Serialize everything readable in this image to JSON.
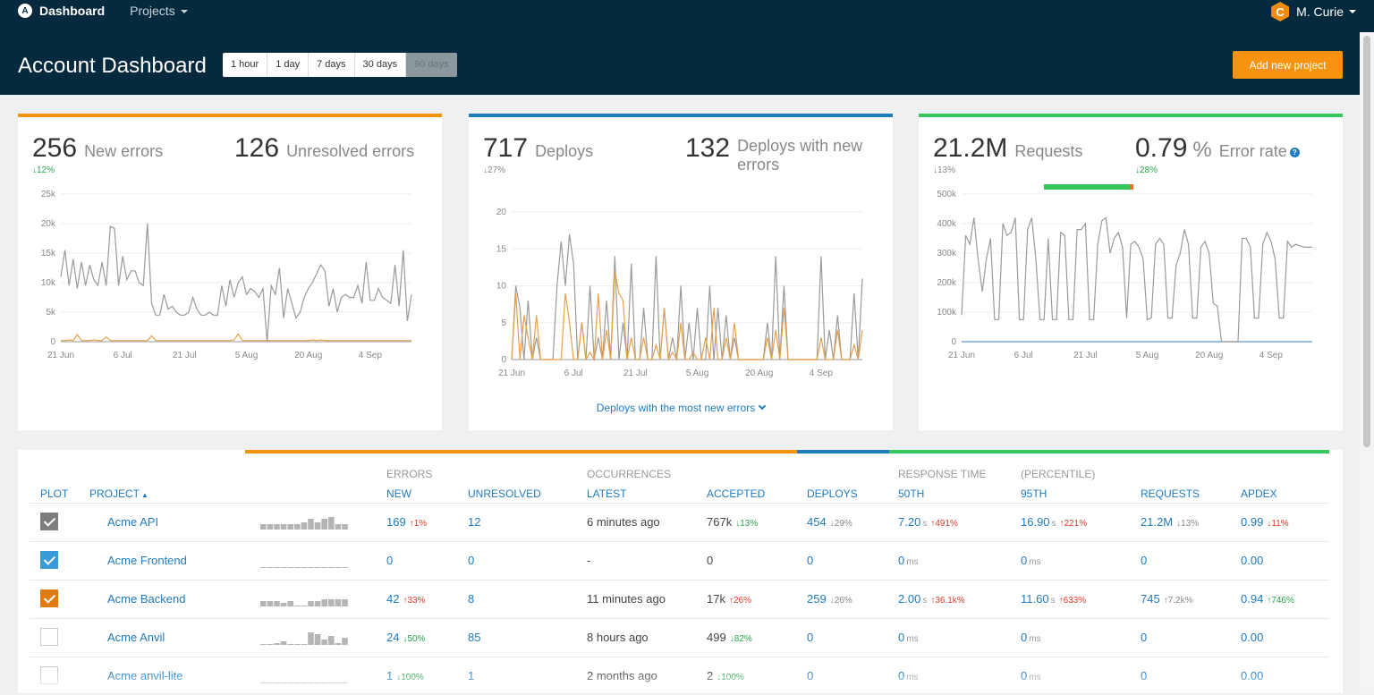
{
  "nav": {
    "logo_letter": "A",
    "brand": "Dashboard",
    "projects": "Projects",
    "user_initial": "C",
    "user_name": "M. Curie"
  },
  "header": {
    "title": "Account Dashboard",
    "ranges": [
      "1 hour",
      "1 day",
      "7 days",
      "30 days",
      "90 days"
    ],
    "active_range": "90 days",
    "add_button": "Add new project"
  },
  "colors": {
    "orange": "#f7930e",
    "blue": "#1f7bbf",
    "green": "#34c759",
    "navy": "#062a3d",
    "grey_series": "#9a9a9a",
    "orange_series": "#e8a04a"
  },
  "cards": [
    {
      "m1": {
        "value": "256",
        "label": "New errors",
        "change": "12%",
        "dir": "down",
        "tone": "green"
      },
      "m2": {
        "value": "126",
        "label": "Unresolved errors"
      }
    },
    {
      "m1": {
        "value": "717",
        "label": "Deploys",
        "change": "27%",
        "dir": "down",
        "tone": "grey"
      },
      "m2": {
        "value": "132",
        "label": "Deploys with new errors"
      },
      "link": "Deploys with the most new errors"
    },
    {
      "m1": {
        "value": "21.2M",
        "label": "Requests",
        "change": "13%",
        "dir": "down",
        "tone": "grey"
      },
      "m2": {
        "value": "0.79",
        "unit": "%",
        "label": "Error rate",
        "change": "28%",
        "dir": "down",
        "tone": "green",
        "help": "?"
      },
      "success_fraction": 0.96
    }
  ],
  "chart_data": [
    {
      "type": "line",
      "x_labels": [
        "21 Jun",
        "6 Jul",
        "21 Jul",
        "5 Aug",
        "20 Aug",
        "4 Sep"
      ],
      "y_labels": [
        "0",
        "5k",
        "10k",
        "15k",
        "20k",
        "25k"
      ],
      "ylim": [
        0,
        25000
      ],
      "series": [
        {
          "values": [
            11000,
            15500,
            9500,
            14000,
            9000,
            13500,
            9500,
            13000,
            10500,
            9500,
            13500,
            9500,
            19500,
            19200,
            9500,
            14500,
            10500,
            12000,
            12000,
            10000,
            9500,
            20000,
            6500,
            4500,
            4500,
            8000,
            5500,
            6000,
            5000,
            4500,
            4500,
            5000,
            7500,
            5500,
            4500,
            4500,
            5000,
            4500,
            4500,
            9500,
            6000,
            10500,
            7500,
            10000,
            11000,
            8000,
            9000,
            8500,
            7500,
            9000,
            0,
            9500,
            8000,
            12500,
            4000,
            9000,
            6500,
            4000,
            5000,
            7500,
            9000,
            10000,
            11500,
            13000,
            12000,
            6000,
            9000,
            5000,
            7500,
            8000,
            7500,
            7500,
            9500,
            6500,
            13500,
            7000,
            7000,
            9000,
            7500,
            7000,
            6500,
            13000,
            6000,
            15500,
            3500,
            8000
          ]
        },
        {
          "values": [
            200,
            200,
            300,
            200,
            1200,
            200,
            200,
            200,
            300,
            200,
            200,
            800,
            200,
            200,
            200,
            200,
            200,
            200,
            200,
            200,
            200,
            200,
            1000,
            200,
            200,
            200,
            200,
            200,
            200,
            200,
            200,
            200,
            200,
            200,
            200,
            200,
            200,
            200,
            200,
            200,
            200,
            200,
            300,
            1300,
            200,
            200,
            200,
            200,
            200,
            200,
            200,
            200,
            200,
            200,
            200,
            200,
            200,
            200,
            200,
            200,
            200,
            300,
            200,
            300,
            200,
            200,
            200,
            200,
            200,
            200,
            200,
            200,
            200,
            200,
            200,
            200,
            200,
            200,
            200,
            200,
            200,
            200,
            200,
            200,
            200,
            200
          ]
        }
      ]
    },
    {
      "type": "line",
      "x_labels": [
        "21 Jun",
        "6 Jul",
        "21 Jul",
        "5 Aug",
        "20 Aug",
        "4 Sep"
      ],
      "y_labels": [
        "0",
        "5",
        "10",
        "15",
        "20"
      ],
      "ylim": [
        0,
        20
      ],
      "series": [
        {
          "values": [
            0,
            10,
            7,
            0,
            8,
            0,
            3,
            0,
            0,
            0,
            0,
            10,
            16,
            10,
            17,
            13,
            0,
            5,
            0,
            10,
            0,
            3,
            0,
            8,
            0,
            14,
            0,
            5,
            0,
            13,
            0,
            0,
            7,
            0,
            0,
            14,
            0,
            7,
            0,
            3,
            0,
            10,
            0,
            5,
            0,
            7,
            0,
            0,
            10,
            0,
            7,
            0,
            6,
            0,
            3,
            0,
            0,
            0,
            0,
            0,
            0,
            0,
            5,
            0,
            14,
            0,
            10,
            0,
            0,
            0,
            0,
            0,
            0,
            0,
            0,
            14,
            0,
            4,
            0,
            6,
            0,
            0,
            0,
            9,
            0,
            11
          ]
        },
        {
          "values": [
            0,
            9,
            0,
            6,
            3,
            0,
            6,
            0,
            0,
            0,
            0,
            0,
            0,
            9,
            5,
            0,
            0,
            5,
            0,
            1,
            0,
            9,
            0,
            4,
            0,
            12,
            9,
            8,
            0,
            3,
            0,
            0,
            3,
            0,
            0,
            2,
            0,
            7,
            0,
            1,
            0,
            5,
            0,
            0,
            1,
            0,
            0,
            3,
            0,
            7,
            0,
            0,
            3,
            0,
            5,
            0,
            0,
            0,
            0,
            0,
            0,
            0,
            3,
            0,
            4,
            0,
            7,
            0,
            0,
            0,
            0,
            0,
            0,
            0,
            0,
            3,
            0,
            0,
            0,
            4,
            0,
            0,
            0,
            2,
            0,
            4
          ]
        }
      ]
    },
    {
      "type": "line",
      "x_labels": [
        "21 Jun",
        "6 Jul",
        "21 Jul",
        "5 Aug",
        "20 Aug",
        "4 Sep"
      ],
      "y_labels": [
        "0",
        "100k",
        "200k",
        "300k",
        "400k",
        "500k"
      ],
      "ylim": [
        0,
        500000
      ],
      "series": [
        {
          "values": [
            90000,
            360000,
            330000,
            420000,
            280000,
            170000,
            280000,
            350000,
            75000,
            75000,
            400000,
            360000,
            370000,
            420000,
            75000,
            75000,
            380000,
            420000,
            280000,
            75000,
            75000,
            350000,
            75000,
            75000,
            370000,
            360000,
            75000,
            75000,
            380000,
            380000,
            400000,
            75000,
            75000,
            330000,
            410000,
            420000,
            300000,
            350000,
            370000,
            320000,
            80000,
            330000,
            340000,
            320000,
            280000,
            75000,
            80000,
            330000,
            350000,
            330000,
            80000,
            80000,
            260000,
            300000,
            380000,
            330000,
            80000,
            80000,
            320000,
            340000,
            300000,
            130000,
            120000,
            0,
            0,
            0,
            0,
            0,
            350000,
            350000,
            320000,
            80000,
            80000,
            330000,
            370000,
            340000,
            280000,
            80000,
            80000,
            340000,
            320000,
            330000,
            325000,
            320000,
            320000,
            320000
          ]
        },
        {
          "values": [
            0,
            0,
            0,
            0,
            0,
            0,
            0,
            0,
            0,
            0,
            0,
            0,
            0,
            0,
            0,
            0,
            0,
            0,
            0,
            0,
            0,
            0,
            0,
            0,
            0,
            0,
            0,
            0,
            0,
            0,
            0,
            0,
            0,
            0,
            0,
            0,
            0,
            0,
            0,
            0,
            0,
            0,
            0,
            0,
            0,
            0,
            0,
            0,
            0,
            0,
            0,
            0,
            0,
            0,
            0,
            0,
            0,
            0,
            0,
            0,
            0,
            0,
            0,
            0,
            0,
            0,
            0,
            0,
            0,
            0,
            0,
            0,
            0,
            0,
            0,
            0,
            0,
            0,
            0,
            0,
            0,
            0,
            0,
            0,
            0,
            0
          ]
        }
      ]
    }
  ],
  "table": {
    "groups": {
      "errors": "ERRORS",
      "occurrences": "OCCURRENCES",
      "response": "RESPONSE TIME",
      "percentile": "(PERCENTILE)"
    },
    "columns": {
      "plot": "PLOT",
      "project": "PROJECT",
      "new": "NEW",
      "unresolved": "UNRESOLVED",
      "latest": "LATEST",
      "accepted": "ACCEPTED",
      "deploys": "DEPLOYS",
      "p50": "50TH",
      "p95": "95TH",
      "requests": "REQUESTS",
      "apdex": "APDEX"
    },
    "rows": [
      {
        "checked": true,
        "check_color": "#7d7d7d",
        "name": "Acme API",
        "spark": [
          3,
          3,
          3,
          3,
          3,
          3,
          4,
          6,
          4,
          6,
          7,
          3,
          3
        ],
        "new": "169",
        "new_chg": "1%",
        "new_dir": "up",
        "unresolved": "12",
        "latest": "6 minutes ago",
        "accepted": "767k",
        "acc_chg": "13%",
        "acc_dir": "down",
        "acc_tone": "green",
        "deploys": "454",
        "dep_chg": "29%",
        "dep_dir": "down",
        "dep_tone": "grey",
        "p50": "7.20",
        "p50_unit": "s",
        "p50_chg": "491%",
        "p95": "16.90",
        "p95_unit": "s",
        "p95_chg": "221%",
        "requests": "21.2M",
        "req_chg": "13%",
        "req_dir": "down",
        "req_tone": "grey",
        "apdex": "0.99",
        "apdex_chg": "11%",
        "apdex_dir": "down",
        "apdex_tone": "red"
      },
      {
        "checked": true,
        "check_color": "#3a9ad9",
        "name": "Acme Frontend",
        "spark": [
          0,
          0,
          0,
          0,
          0,
          0,
          0,
          0,
          0,
          0,
          0,
          0,
          0
        ],
        "new": "0",
        "unresolved": "0",
        "latest": "-",
        "accepted": "0",
        "deploys": "0",
        "p50": "0",
        "p50_unit": "ms",
        "p95": "0",
        "p95_unit": "ms",
        "requests": "0",
        "apdex": "0.00"
      },
      {
        "checked": true,
        "check_color": "#e07b12",
        "name": "Acme Backend",
        "spark": [
          3,
          3,
          3,
          2,
          3,
          0,
          0,
          3,
          3,
          4,
          4,
          4,
          4
        ],
        "new": "42",
        "new_chg": "33%",
        "new_dir": "up",
        "unresolved": "8",
        "latest": "11 minutes ago",
        "accepted": "17k",
        "acc_chg": "26%",
        "acc_dir": "up",
        "acc_tone": "red",
        "deploys": "259",
        "dep_chg": "26%",
        "dep_dir": "down",
        "dep_tone": "grey",
        "p50": "2.00",
        "p50_unit": "s",
        "p50_chg": "36.1k%",
        "p95": "11.60",
        "p95_unit": "s",
        "p95_chg": "633%",
        "requests": "745",
        "req_chg": "7.2k%",
        "req_dir": "up",
        "req_tone": "grey",
        "apdex": "0.94",
        "apdex_chg": "746%",
        "apdex_dir": "up",
        "apdex_tone": "green"
      },
      {
        "checked": false,
        "name": "Acme Anvil",
        "spark": [
          0,
          0,
          1,
          2,
          0,
          0,
          0,
          7,
          6,
          3,
          5,
          1,
          4
        ],
        "new": "24",
        "new_chg": "50%",
        "new_dir": "down",
        "new_tone": "green",
        "unresolved": "85",
        "latest": "8 hours ago",
        "accepted": "499",
        "acc_chg": "82%",
        "acc_dir": "down",
        "acc_tone": "green",
        "deploys": "0",
        "p50": "0",
        "p50_unit": "ms",
        "p95": "0",
        "p95_unit": "ms",
        "requests": "0",
        "apdex": "0.00"
      },
      {
        "checked": false,
        "name": "Acme anvil-lite",
        "spark": [
          0,
          0,
          0,
          0,
          0,
          0,
          0,
          0,
          0,
          0,
          0,
          0,
          0
        ],
        "new": "1",
        "new_chg": "100%",
        "new_dir": "down",
        "new_tone": "green",
        "unresolved": "1",
        "latest": "2 months ago",
        "accepted": "2",
        "acc_chg": "100%",
        "acc_dir": "down",
        "acc_tone": "green",
        "deploys": "0",
        "p50": "0",
        "p50_unit": "ms",
        "p95": "0",
        "p95_unit": "ms",
        "requests": "0",
        "apdex": "0.00"
      }
    ]
  }
}
